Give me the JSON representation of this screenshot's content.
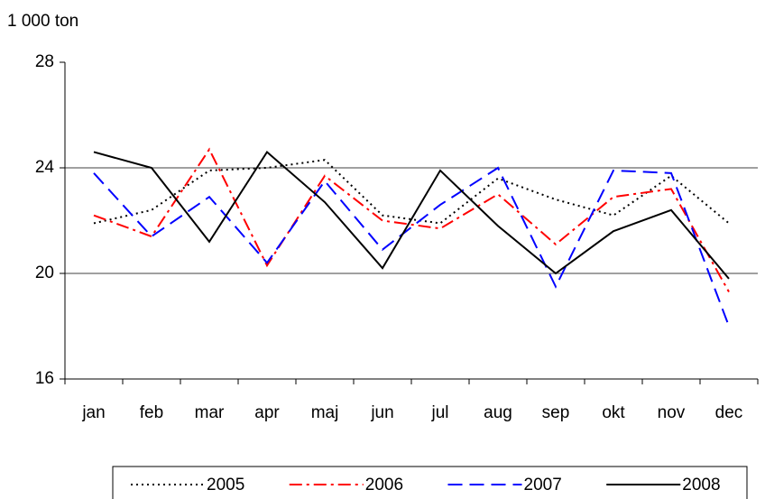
{
  "chart_data": {
    "type": "line",
    "y_label": "1 000 ton",
    "categories": [
      "jan",
      "feb",
      "mar",
      "apr",
      "maj",
      "jun",
      "jul",
      "aug",
      "sep",
      "okt",
      "nov",
      "dec"
    ],
    "ylim": [
      16,
      28
    ],
    "yticks": [
      16,
      20,
      24,
      28
    ],
    "grid": true,
    "legend": "bottom",
    "series": [
      {
        "name": "2005",
        "color": "#000000",
        "style": "dotted",
        "values": [
          21.9,
          22.4,
          23.9,
          24.0,
          24.3,
          22.2,
          21.9,
          23.6,
          22.8,
          22.2,
          23.7,
          21.9
        ]
      },
      {
        "name": "2006",
        "color": "#ff0000",
        "style": "dashdot",
        "values": [
          22.2,
          21.4,
          24.7,
          20.3,
          23.7,
          22.0,
          21.7,
          23.0,
          21.1,
          22.9,
          23.2,
          19.3
        ]
      },
      {
        "name": "2007",
        "color": "#0000ff",
        "style": "dashed",
        "values": [
          23.8,
          21.4,
          22.9,
          20.4,
          23.5,
          20.9,
          22.6,
          24.0,
          19.5,
          23.9,
          23.8,
          18.0
        ]
      },
      {
        "name": "2008",
        "color": "#000000",
        "style": "solid",
        "values": [
          24.6,
          24.0,
          21.2,
          24.6,
          22.7,
          20.2,
          23.9,
          21.8,
          20.0,
          21.6,
          22.4,
          19.8
        ]
      }
    ]
  }
}
